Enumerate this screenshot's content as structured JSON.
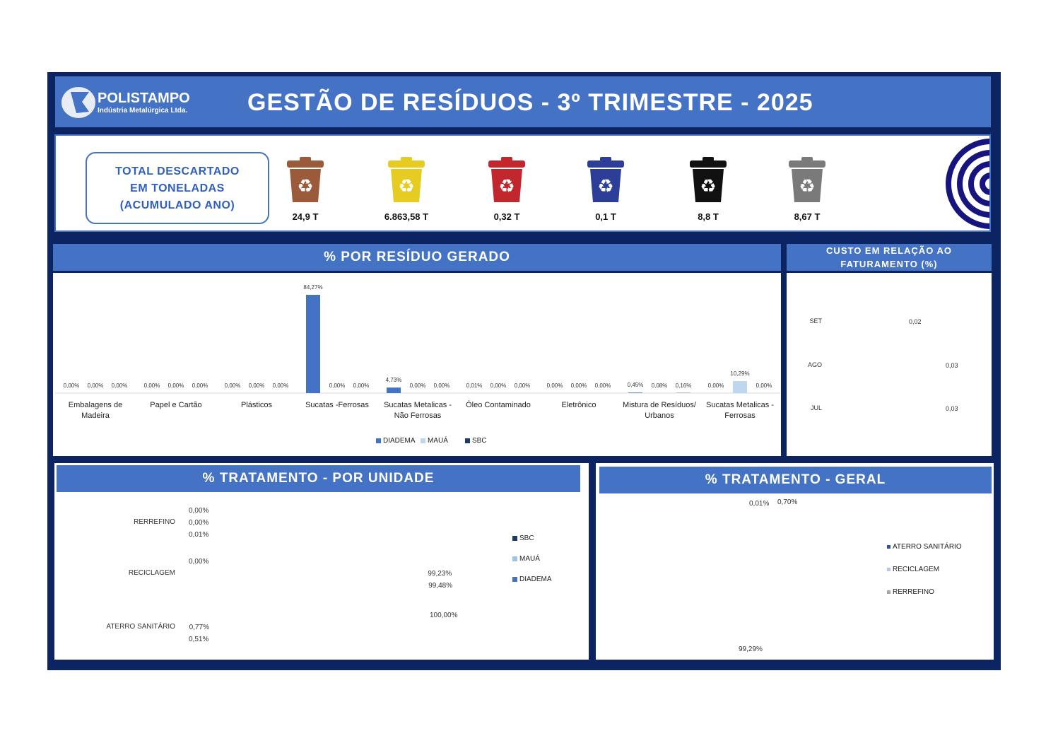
{
  "header": {
    "logo_name": "POLISTAMPO",
    "logo_sub": "Indústria Metalúrgica Ltda.",
    "title": "GESTÃO DE RESÍDUOS - 3º TRIMESTRE - 2025"
  },
  "totals": {
    "label_lines": [
      "TOTAL DESCARTADO",
      "EM TONELADAS",
      "(ACUMULADO ANO)"
    ],
    "bins": [
      {
        "icon": "recycle-bin-brown-icon",
        "color": "#9b5a3a",
        "value": "24,9 T"
      },
      {
        "icon": "recycle-bin-yellow-icon",
        "color": "#e6cc22",
        "value": "6.863,58 T"
      },
      {
        "icon": "recycle-bin-red-icon",
        "color": "#c1272d",
        "value": "0,32 T"
      },
      {
        "icon": "recycle-bin-blue-icon",
        "color": "#2d3e99",
        "value": "0,1 T"
      },
      {
        "icon": "recycle-bin-black-icon",
        "color": "#111111",
        "value": "8,8 T"
      },
      {
        "icon": "recycle-bin-gray-icon",
        "color": "#7a7a7a",
        "value": "8,67 T"
      }
    ]
  },
  "colors": {
    "frame": "#0c2461",
    "accent": "#4472c4",
    "diadema": "#4472c4",
    "maua": "#bdd7ee",
    "sbc": "#1f3864"
  },
  "chart_data": [
    {
      "type": "bar",
      "title": "% POR RESÍDUO GERADO",
      "categories": [
        "Embalagens de Madeira",
        "Papel e Cartão",
        "Plásticos",
        "Sucatas -Ferrosas",
        "Sucatas Metalicas - Não Ferrosas",
        "Óleo Contaminado",
        "Eletrônico",
        "Mistura de Resíduos/ Urbanos",
        "Sucatas Metalicas - Ferrosas"
      ],
      "series": [
        {
          "name": "DIADEMA",
          "color": "#4472c4",
          "values": [
            0,
            0,
            0,
            84.27,
            4.73,
            0.01,
            0,
            0.45,
            0
          ],
          "labels": [
            "0,00%",
            "0,00%",
            "0,00%",
            "84,27%",
            "4,73%",
            "0,01%",
            "0,00%",
            "0,45%",
            "0,00%"
          ]
        },
        {
          "name": "MAUÁ",
          "color": "#bdd7ee",
          "values": [
            0,
            0,
            0,
            0,
            0,
            0,
            0,
            0.08,
            10.29
          ],
          "labels": [
            "0,00%",
            "0,00%",
            "0,00%",
            "0,00%",
            "0,00%",
            "0,00%",
            "0,00%",
            "0,08%",
            "10,29%"
          ]
        },
        {
          "name": "SBC",
          "color": "#1f3864",
          "values": [
            0,
            0,
            0,
            0,
            0,
            0,
            0,
            0.16,
            0
          ],
          "labels": [
            "0,00%",
            "0,00%",
            "0,00%",
            "0,00%",
            "0,00%",
            "0,00%",
            "0,00%",
            "0,16%",
            "0,00%"
          ]
        }
      ],
      "legend": "bottom",
      "grid": false
    },
    {
      "type": "bar",
      "orientation": "horizontal",
      "title": "CUSTO EM RELAÇÃO AO FATURAMENTO (%)",
      "categories": [
        "SET",
        "AGO",
        "JUL"
      ],
      "values": [
        0.02,
        0.03,
        0.03
      ],
      "labels": [
        "0,02",
        "0,03",
        "0,03"
      ],
      "color": "#8faadc"
    },
    {
      "type": "bar",
      "orientation": "horizontal",
      "title": "% TRATAMENTO - POR UNIDADE",
      "categories": [
        "RERREFINO",
        "RECICLAGEM",
        "ATERRO SANITÁRIO"
      ],
      "series": [
        {
          "name": "SBC",
          "color": "#1f3864",
          "values": [
            0,
            0,
            100
          ],
          "labels": [
            "0,00%",
            "0,00%",
            "100,00%"
          ]
        },
        {
          "name": "MAUÁ",
          "color": "#9dc3e6",
          "values": [
            0,
            99.23,
            0.77
          ],
          "labels": [
            "0,00%",
            "99,23%",
            "0,77%"
          ]
        },
        {
          "name": "DIADEMA",
          "color": "#4472c4",
          "values": [
            0.01,
            99.48,
            0.51
          ],
          "labels": [
            "0,01%",
            "99,48%",
            "0,51%"
          ]
        }
      ],
      "legend": "right",
      "xlim": [
        0,
        100
      ]
    },
    {
      "type": "pie",
      "title": "% TRATAMENTO - GERAL",
      "slices": [
        {
          "name": "ATERRO SANITÁRIO",
          "value": 0.7,
          "label": "0,70%",
          "color": "#2f4f9f"
        },
        {
          "name": "RECICLAGEM",
          "value": 99.29,
          "label": "99,29%",
          "color": "#b4c7e7"
        },
        {
          "name": "RERREFINO",
          "value": 0.01,
          "label": "0,01%",
          "color": "#a5a5a5"
        }
      ],
      "legend": "right"
    }
  ]
}
